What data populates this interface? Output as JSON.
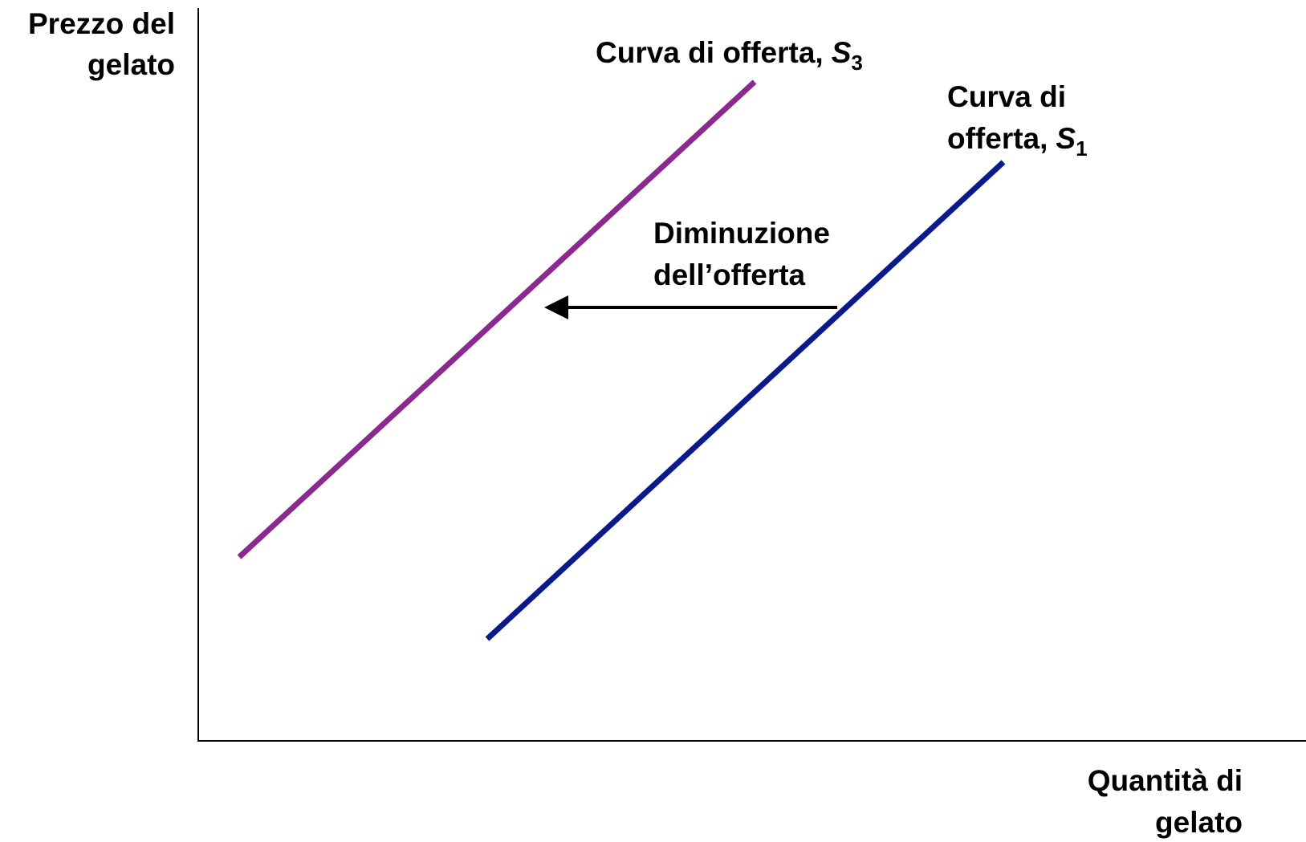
{
  "y_axis": {
    "lines": [
      "Prezzo del",
      "gelato"
    ]
  },
  "x_axis": {
    "lines": [
      "Quantità di",
      "gelato"
    ]
  },
  "curves": [
    {
      "lines": [
        "Curva di offerta,"
      ],
      "symbol": "S",
      "subscript": "3",
      "color": "#8b2a8e"
    },
    {
      "lines": [
        "Curva di",
        "offerta,"
      ],
      "symbol": "S",
      "subscript": "1",
      "color": "#0a1a8c"
    }
  ],
  "annotation": {
    "lines": [
      "Diminuzione",
      "dell’offerta"
    ]
  }
}
